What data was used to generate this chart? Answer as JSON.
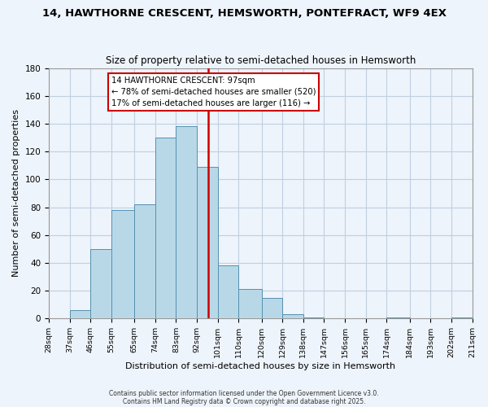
{
  "title": "14, HAWTHORNE CRESCENT, HEMSWORTH, PONTEFRACT, WF9 4EX",
  "subtitle": "Size of property relative to semi-detached houses in Hemsworth",
  "xlabel": "Distribution of semi-detached houses by size in Hemsworth",
  "ylabel": "Number of semi-detached properties",
  "bin_labels": [
    "28sqm",
    "37sqm",
    "46sqm",
    "55sqm",
    "65sqm",
    "74sqm",
    "83sqm",
    "92sqm",
    "101sqm",
    "110sqm",
    "120sqm",
    "129sqm",
    "138sqm",
    "147sqm",
    "156sqm",
    "165sqm",
    "174sqm",
    "184sqm",
    "193sqm",
    "202sqm",
    "211sqm"
  ],
  "bin_edges": [
    28,
    37,
    46,
    55,
    65,
    74,
    83,
    92,
    101,
    110,
    120,
    129,
    138,
    147,
    156,
    165,
    174,
    184,
    193,
    202,
    211
  ],
  "bar_heights": [
    0,
    6,
    50,
    78,
    82,
    130,
    138,
    109,
    38,
    21,
    15,
    3,
    1,
    0,
    0,
    0,
    1,
    0,
    0,
    1
  ],
  "bar_color": "#b8d8e8",
  "bar_edge_color": "#5590b0",
  "property_value": 97,
  "vline_color": "#cc0000",
  "annotation_title": "14 HAWTHORNE CRESCENT: 97sqm",
  "annotation_line1": "← 78% of semi-detached houses are smaller (520)",
  "annotation_line2": "17% of semi-detached houses are larger (116) →",
  "annotation_box_color": "#ffffff",
  "annotation_box_edge_color": "#cc0000",
  "ylim": [
    0,
    180
  ],
  "yticks": [
    0,
    20,
    40,
    60,
    80,
    100,
    120,
    140,
    160,
    180
  ],
  "footer1": "Contains HM Land Registry data © Crown copyright and database right 2025.",
  "footer2": "Contains public sector information licensed under the Open Government Licence v3.0.",
  "bg_color": "#eef4fb",
  "grid_color": "#c0cfe0"
}
